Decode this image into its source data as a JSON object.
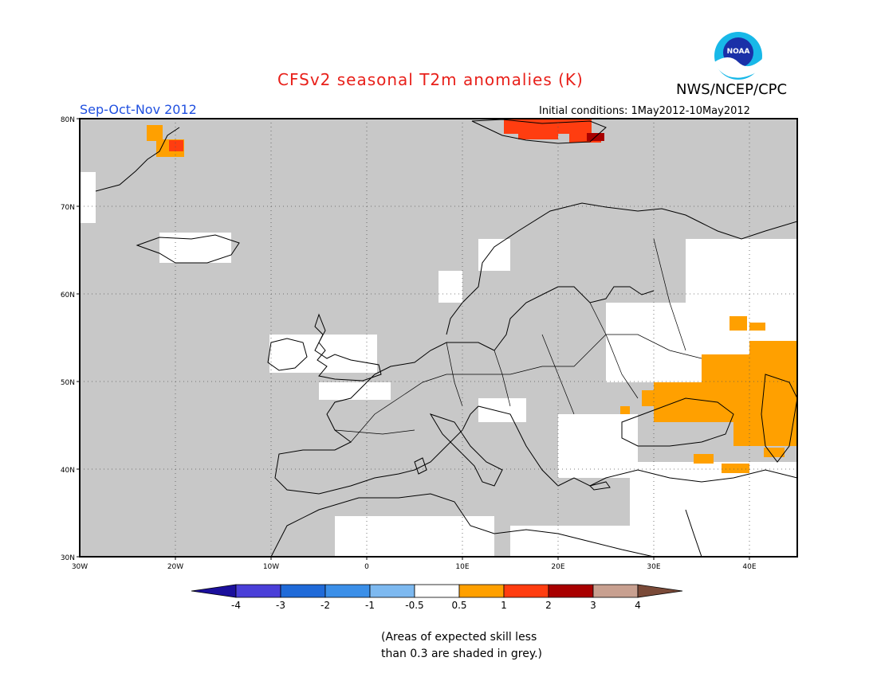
{
  "title": "CFSv2 seasonal T2m anomalies (K)",
  "organization": "NWS/NCEP/CPC",
  "logo_text": "NOAA",
  "season": "Sep-Oct-Nov 2012",
  "initial_conditions": "Initial conditions: 1May2012-10May2012",
  "footnote": {
    "line1": "(Areas of expected skill less",
    "line2": "than 0.3 are shaded in grey.)"
  },
  "map": {
    "lat_labels": [
      "80N",
      "70N",
      "60N",
      "50N",
      "40N",
      "30N"
    ],
    "lon_labels": [
      "30W",
      "20W",
      "10W",
      "0",
      "10E",
      "20E",
      "30E",
      "40E"
    ],
    "extent": {
      "lon": [
        -30,
        45
      ],
      "lat": [
        30,
        80
      ]
    }
  },
  "legend": {
    "tick_labels": [
      "-4",
      "-3",
      "-2",
      "-1",
      "-0.5",
      "0.5",
      "1",
      "2",
      "3",
      "4"
    ],
    "colors": [
      "#1b0f9c",
      "#4a3fd8",
      "#1f6ad8",
      "#3b8fe8",
      "#7db9f0",
      "#ffffff",
      "#ffa000",
      "#ff3d10",
      "#a80000",
      "#c8a090",
      "#7a4a38"
    ]
  },
  "colors": {
    "grey_mask": "#c8c8c8",
    "title": "#e8201a",
    "season": "#2050e0"
  }
}
